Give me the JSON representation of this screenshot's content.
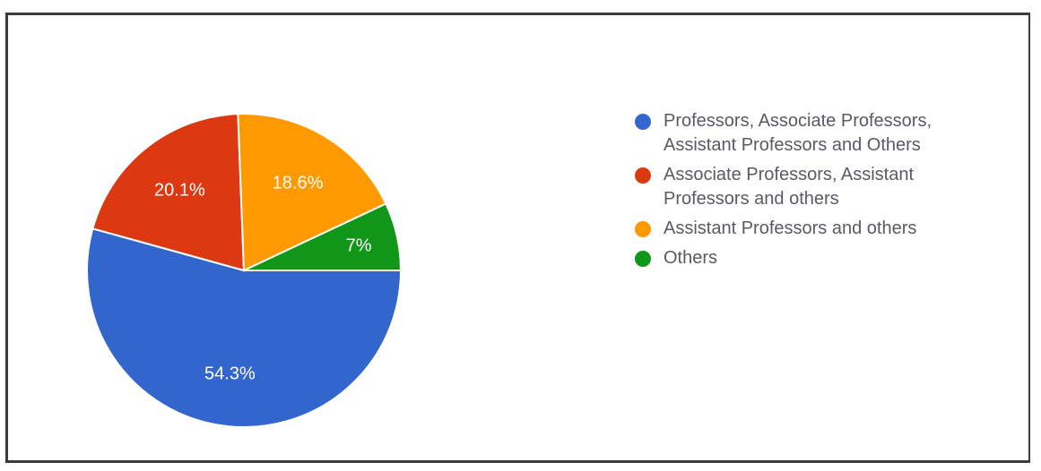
{
  "chart_data": {
    "type": "pie",
    "labels": [
      "Professors, Associate Professors, Assistant Professors and Others",
      "Associate Professors, Assistant Professors and others",
      "Assistant Professors and others",
      "Others"
    ],
    "legend_lines": [
      [
        "Professors, Associate Professors,",
        "Assistant Professors and Others"
      ],
      [
        "Associate Professors, Assistant",
        "Professors and others"
      ],
      [
        "Assistant Professors and others"
      ],
      [
        "Others"
      ]
    ],
    "values": [
      54.3,
      20.1,
      18.6,
      7
    ],
    "value_labels": [
      "54.3%",
      "20.1%",
      "18.6%",
      "7%"
    ],
    "colors": [
      "#3366cc",
      "#dc3912",
      "#ff9900",
      "#109618"
    ],
    "legend_position": "right",
    "start": "3 o'clock",
    "direction": "clockwise"
  }
}
